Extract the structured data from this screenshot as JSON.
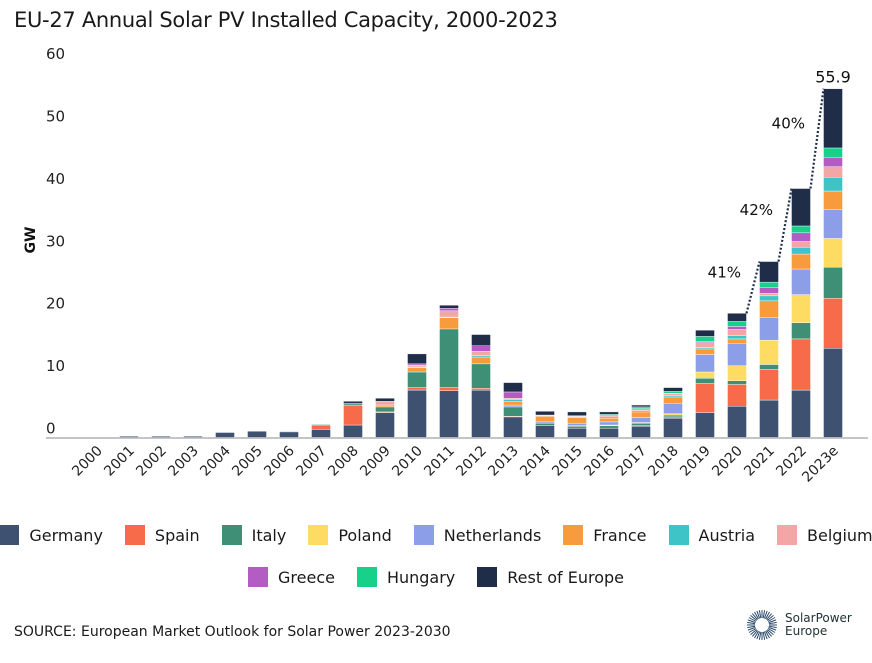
{
  "chart_data": {
    "type": "bar",
    "stacked": true,
    "title": "EU-27 Annual Solar PV Installed Capacity, 2000-2023",
    "ylabel": "GW",
    "xlabel": "",
    "ylim": [
      0,
      60
    ],
    "yticks": [
      0,
      10,
      20,
      30,
      40,
      50,
      60
    ],
    "grid": false,
    "legend_position": "bottom",
    "categories": [
      "2000",
      "2001",
      "2002",
      "2003",
      "2004",
      "2005",
      "2006",
      "2007",
      "2008",
      "2009",
      "2010",
      "2011",
      "2012",
      "2013",
      "2014",
      "2015",
      "2016",
      "2017",
      "2018",
      "2019",
      "2020",
      "2021",
      "2022",
      "2023e"
    ],
    "series": [
      {
        "name": "Germany",
        "color": "#3e5170",
        "values": [
          0,
          0.2,
          0.2,
          0.2,
          0.8,
          1.0,
          0.9,
          1.3,
          2.0,
          4.0,
          7.6,
          7.5,
          7.6,
          3.3,
          1.9,
          1.5,
          1.5,
          1.8,
          3.1,
          4.0,
          5.0,
          6.0,
          7.6,
          14.3
        ]
      },
      {
        "name": "Spain",
        "color": "#f76b4a",
        "values": [
          0,
          0,
          0,
          0,
          0,
          0,
          0.1,
          0.7,
          3.2,
          0.1,
          0.4,
          0.5,
          0.3,
          0.1,
          0,
          0,
          0,
          0.1,
          0.2,
          4.7,
          3.5,
          4.9,
          8.2,
          8.0
        ]
      },
      {
        "name": "Italy",
        "color": "#3e8f75",
        "values": [
          0,
          0,
          0,
          0,
          0,
          0,
          0,
          0.1,
          0.3,
          0.8,
          2.5,
          9.4,
          3.9,
          1.5,
          0.4,
          0.3,
          0.4,
          0.4,
          0.3,
          0.8,
          0.6,
          0.8,
          2.6,
          5.0
        ]
      },
      {
        "name": "Poland",
        "color": "#fedb62",
        "values": [
          0,
          0,
          0,
          0,
          0,
          0,
          0,
          0,
          0,
          0,
          0,
          0,
          0,
          0,
          0,
          0.1,
          0.1,
          0.1,
          0.2,
          1.0,
          2.4,
          3.9,
          4.5,
          4.6
        ]
      },
      {
        "name": "Netherlands",
        "color": "#8c9ee8",
        "values": [
          0,
          0,
          0,
          0,
          0,
          0,
          0,
          0,
          0,
          0,
          0,
          0,
          0,
          0.3,
          0.2,
          0.4,
          0.5,
          0.8,
          1.7,
          2.8,
          3.6,
          3.6,
          4.1,
          4.6
        ]
      },
      {
        "name": "France",
        "color": "#f89b3c",
        "values": [
          0,
          0,
          0,
          0,
          0,
          0,
          0,
          0,
          0,
          0.3,
          0.7,
          1.8,
          1.1,
          0.6,
          0.9,
          0.9,
          0.6,
          0.9,
          1.0,
          0.9,
          0.7,
          2.7,
          2.4,
          3.0
        ]
      },
      {
        "name": "Austria",
        "color": "#3ec4c6",
        "values": [
          0,
          0,
          0,
          0,
          0,
          0,
          0,
          0,
          0,
          0,
          0.1,
          0.1,
          0.2,
          0.3,
          0.1,
          0.1,
          0.2,
          0.2,
          0.2,
          0.2,
          0.5,
          0.8,
          1.1,
          2.2
        ]
      },
      {
        "name": "Belgium",
        "color": "#f3a6a6",
        "values": [
          0,
          0,
          0,
          0,
          0,
          0,
          0,
          0,
          0,
          0.6,
          0.3,
          1.0,
          0.7,
          0.2,
          0.1,
          0.1,
          0.2,
          0.3,
          0.3,
          0.8,
          1.0,
          0.4,
          0.9,
          1.7
        ]
      },
      {
        "name": "Greece",
        "color": "#b25cc4",
        "values": [
          0,
          0,
          0,
          0,
          0,
          0,
          0,
          0,
          0,
          0,
          0.2,
          0.4,
          0.9,
          1.0,
          0,
          0,
          0,
          0,
          0.1,
          0.2,
          0.5,
          0.9,
          1.4,
          1.5
        ]
      },
      {
        "name": "Hungary",
        "color": "#17d08a",
        "values": [
          0,
          0,
          0,
          0,
          0,
          0,
          0,
          0,
          0,
          0,
          0,
          0,
          0,
          0,
          0,
          0.1,
          0.2,
          0.3,
          0.3,
          0.8,
          0.8,
          0.9,
          1.1,
          1.5
        ]
      },
      {
        "name": "Rest of Europe",
        "color": "#1f2d48",
        "values": [
          0,
          0,
          0,
          0,
          0,
          0,
          0,
          0,
          0.3,
          0.5,
          1.6,
          0.5,
          1.8,
          1.5,
          0.6,
          0.6,
          0.4,
          0.3,
          0.6,
          1.0,
          1.3,
          3.3,
          6.0,
          9.5
        ]
      }
    ],
    "annotations": {
      "total_label": {
        "category": "2023e",
        "text": "55.9"
      },
      "growth_labels": [
        {
          "from": "2020",
          "to": "2021",
          "text": "41%"
        },
        {
          "from": "2021",
          "to": "2022",
          "text": "42%"
        },
        {
          "from": "2022",
          "to": "2023e",
          "text": "40%"
        }
      ]
    }
  },
  "source": "SOURCE: European Market Outlook for Solar Power 2023-2030",
  "logo": {
    "line1": "SolarPower",
    "line2": "Europe"
  }
}
